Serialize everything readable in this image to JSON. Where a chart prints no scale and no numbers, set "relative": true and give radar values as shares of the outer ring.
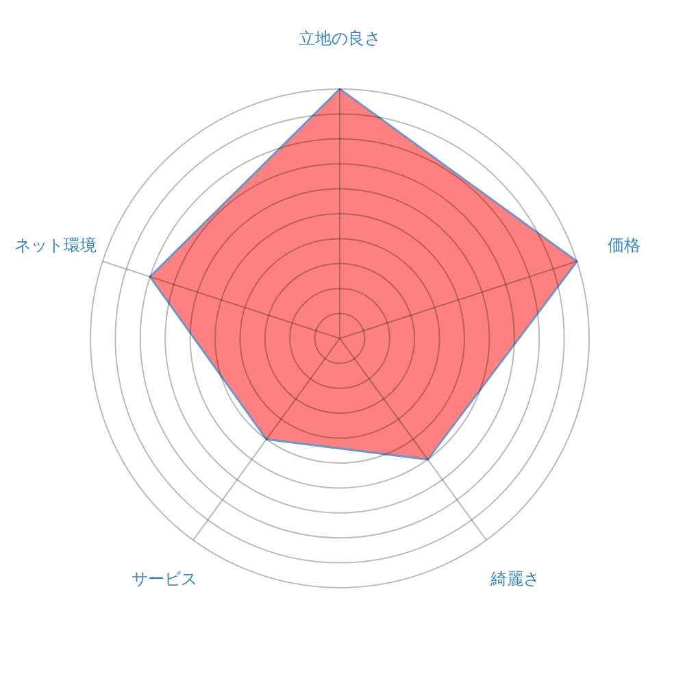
{
  "chart_data": {
    "type": "radar",
    "relative": true,
    "grid": true,
    "categories": [
      "立地の良さ",
      "価格",
      "綺麗さ",
      "サービス",
      "ネット環境"
    ],
    "series": [
      {
        "color": "#ff8080",
        "values": [
          1.0,
          1.0,
          0.6,
          0.5,
          0.8
        ]
      }
    ]
  }
}
